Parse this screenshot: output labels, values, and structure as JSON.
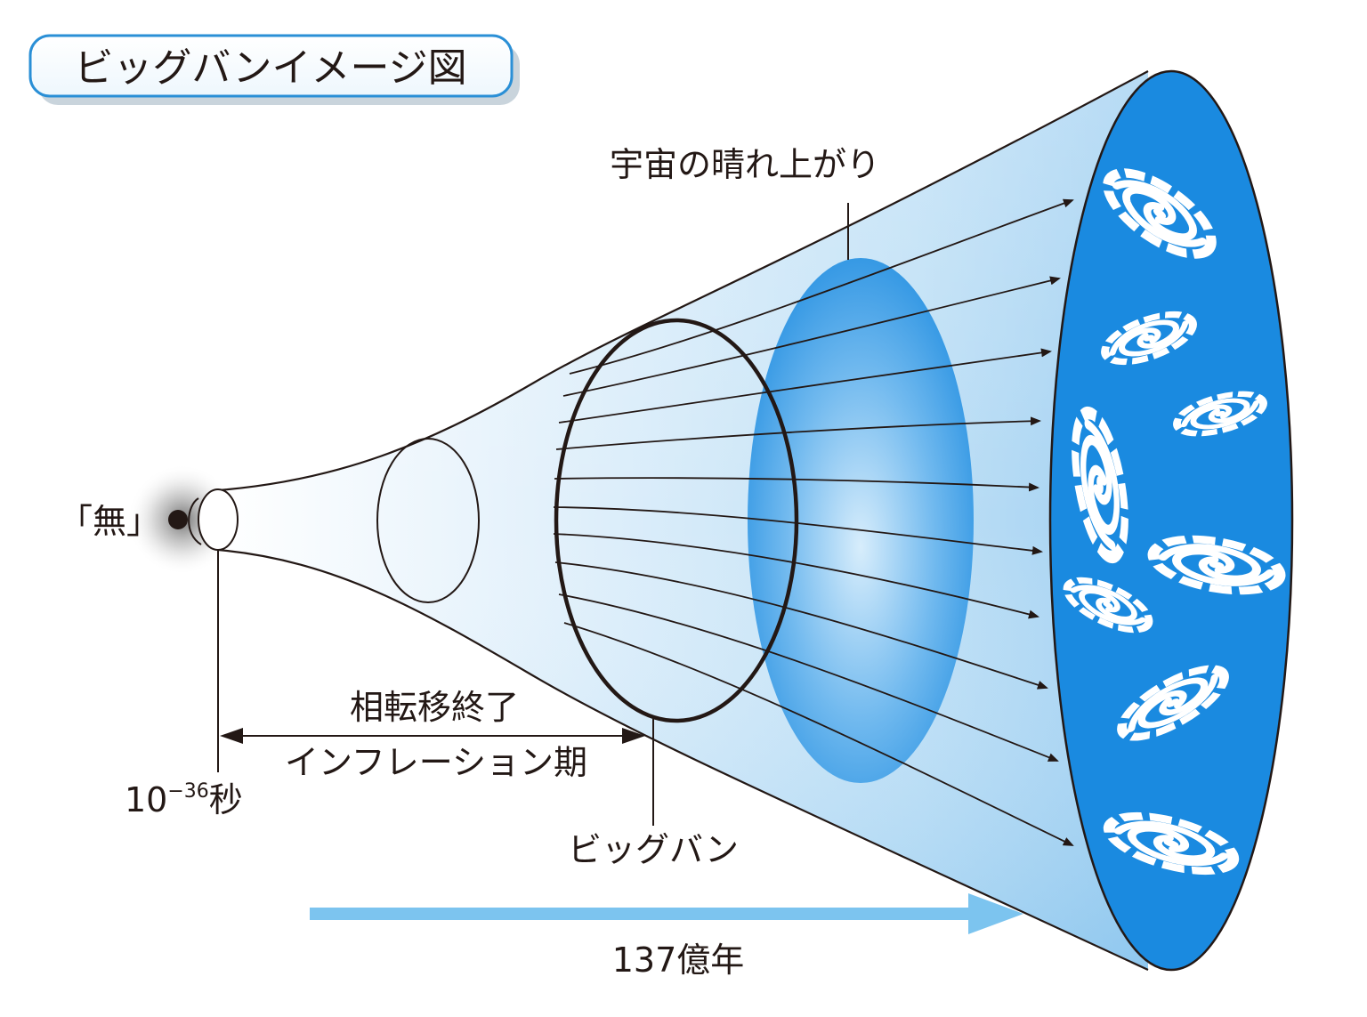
{
  "title_badge": "ビッグバンイメージ図",
  "labels": {
    "nothing": "「無」",
    "clearing": "宇宙の晴れ上がり",
    "phase_end": "相転移終了",
    "inflation": "インフレーション期",
    "time_base": "10",
    "time_exp": "−36",
    "time_unit": "秒",
    "bigbang": "ビッグバン",
    "age": "137億年"
  },
  "colors": {
    "badge_border": "#2a8fd6",
    "funnel_light": "#e6f3fc",
    "funnel_mid": "#a9d4f3",
    "universe": "#1a8ae0",
    "clearing_ellipse": "#1d8ee2",
    "timeline_arrow": "#7cc4ef",
    "ink": "#231815"
  },
  "icons": {
    "origin": "dot-icon",
    "galaxy": "spiral-galaxy-icon",
    "arrow": "arrowhead-icon"
  }
}
